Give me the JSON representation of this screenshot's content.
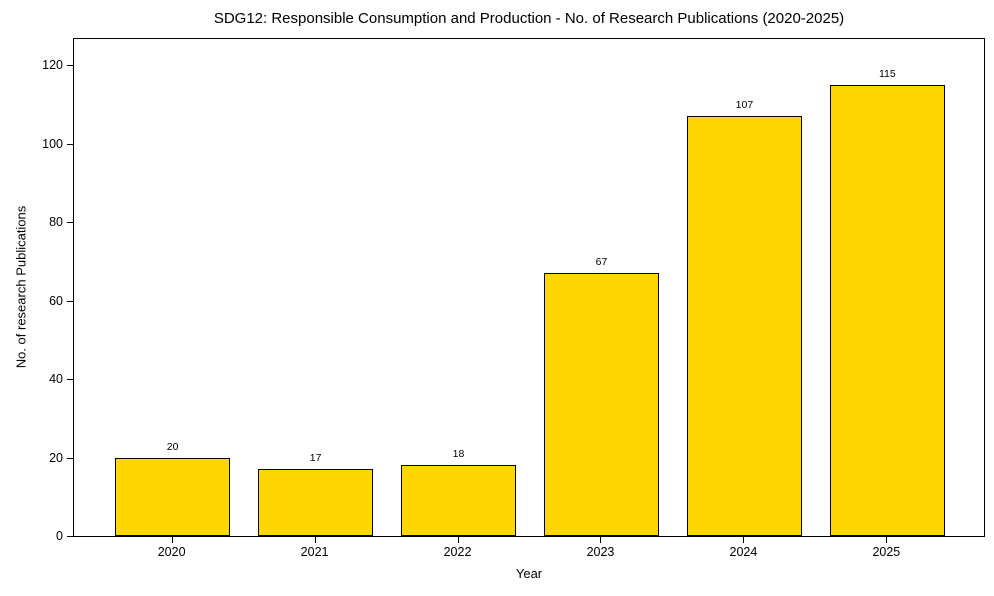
{
  "chart_data": {
    "type": "bar",
    "title": "SDG12: Responsible Consumption and Production - No. of Research Publications (2020-2025)",
    "xlabel": "Year",
    "ylabel": "No. of research Publications",
    "categories": [
      "2020",
      "2021",
      "2022",
      "2023",
      "2024",
      "2025"
    ],
    "values": [
      20,
      17,
      18,
      67,
      107,
      115
    ],
    "yticks": [
      0,
      20,
      40,
      60,
      80,
      100,
      120
    ],
    "ylim": [
      0,
      127
    ],
    "xlim": [
      -0.69,
      5.69
    ],
    "bar_width": 0.8,
    "bar_color": "#FFD700",
    "bar_edge_color": "#000000",
    "grid": false,
    "legend_position": "none"
  }
}
